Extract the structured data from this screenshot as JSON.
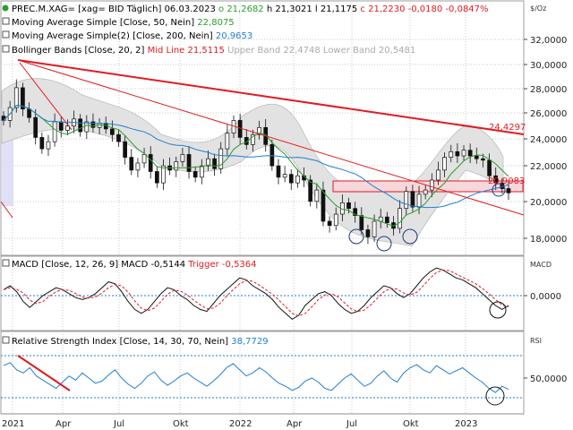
{
  "chart_data": [
    {
      "type": "candlestick",
      "symbol_line": {
        "symbol": "PREC.M.XAG=",
        "source": "[xag= BID Täglich]",
        "date": "06.03.2023",
        "o": "o 21,2682",
        "h": "h 21,3021",
        "l": "l 21,1175",
        "c": "c 21,2230",
        "chg": "-0,0180",
        "chg_pct": "-0,0847%"
      },
      "unit": "$/Oz",
      "ylim": [
        16.5,
        33
      ],
      "yticks": [
        {
          "value": 32,
          "label": "32,0000"
        },
        {
          "value": 30,
          "label": "30,0000"
        },
        {
          "value": 28,
          "label": "28,0000"
        },
        {
          "value": 26,
          "label": "26,0000"
        },
        {
          "value": 24,
          "label": "24,0000"
        },
        {
          "value": 22,
          "label": "22,0000"
        },
        {
          "value": 20,
          "label": "20,0000"
        },
        {
          "value": 18,
          "label": "18,0000"
        }
      ],
      "indicators": [
        {
          "name": "Moving Average Simple",
          "params": "[Close, 50, Nein]",
          "value": "22,8075",
          "color": "#2a9d2a"
        },
        {
          "name": "Moving Average Simple(2)",
          "params": "[Close, 200, Nein]",
          "value": "20,9653",
          "color": "#1f7fd1"
        },
        {
          "name": "Bollinger Bands",
          "params": "[Close, 20, 2]",
          "mid": "Mid Line 21,5115",
          "upper": "Upper Band 22,4748",
          "lower": "Lower Band 20,5481",
          "color": "#b0b0b0"
        }
      ],
      "annotations": [
        {
          "label": "24,4297",
          "value": 24.43,
          "color": "#e11b22"
        },
        {
          "label": "20,9083",
          "value": 20.91,
          "color": "#e11b22"
        }
      ],
      "close_series": [
        26.3,
        27.2,
        28.6,
        27.1,
        26.5,
        25.1,
        24.3,
        24.8,
        26.2,
        25.6,
        25.9,
        26.4,
        25.5,
        26.2,
        25.8,
        26.1,
        25.7,
        25.3,
        24.8,
        23.7,
        22.8,
        23.3,
        23.9,
        22.7,
        21.9,
        23.1,
        22.8,
        23.4,
        23.9,
        22.7,
        22.3,
        23.1,
        23.6,
        22.9,
        24.3,
        25.4,
        26.3,
        25.1,
        24.6,
        25.3,
        25.8,
        24.6,
        23.1,
        22.3,
        22.5,
        21.9,
        22.4,
        22.1,
        20.6,
        21.4,
        19.2,
        18.9,
        19.7,
        20.5,
        20.1,
        19.6,
        18.6,
        18.1,
        19.2,
        19.5,
        19.1,
        18.7,
        20.1,
        21.3,
        20.2,
        21.1,
        21.4,
        22.1,
        22.8,
        23.7,
        24.1,
        23.8,
        24.2,
        23.8,
        23.6,
        23.5,
        22.4,
        21.9,
        21.5,
        21.2
      ],
      "xticks": [
        "2021",
        "Apr",
        "Jul",
        "Okt",
        "2022",
        "Apr",
        "Jul",
        "Okt",
        "2023"
      ]
    },
    {
      "type": "line",
      "name": "MACD",
      "params": "[Close, 12, 26, 9]",
      "value_label": "MACD -0,5144",
      "trigger_label": "Trigger -0,5364",
      "axis_label": "MACD",
      "ytick": "0,0000",
      "macd_series": [
        0.3,
        0.5,
        0.2,
        -0.3,
        -0.6,
        -0.3,
        0.0,
        0.2,
        0.4,
        0.3,
        0.1,
        -0.1,
        -0.2,
        -0.1,
        0.1,
        0.4,
        0.7,
        0.6,
        0.2,
        -0.3,
        -0.7,
        -0.9,
        -0.7,
        -0.3,
        0.1,
        0.4,
        0.3,
        0.0,
        -0.2,
        -0.5,
        -0.7,
        -0.8,
        -0.4,
        0.0,
        0.3,
        0.6,
        0.9,
        0.8,
        0.5,
        0.3,
        0.1,
        -0.2,
        -0.6,
        -0.9,
        -1.2,
        -1.0,
        -0.5,
        -0.2,
        0.1,
        0.2,
        0.0,
        -0.4,
        -0.7,
        -0.9,
        -0.8,
        -0.5,
        -0.1,
        0.2,
        0.5,
        0.4,
        0.1,
        -0.1,
        0.1,
        0.5,
        0.9,
        1.2,
        1.4,
        1.3,
        1.1,
        0.9,
        0.8,
        0.6,
        0.4,
        0.1,
        -0.2,
        -0.5,
        -0.7,
        -0.5
      ]
    },
    {
      "type": "line",
      "name": "Relative Strength Index",
      "params": "[Close, 14, 30, 70, Nein]",
      "value_label": "38,7729",
      "axis_label": "RSI",
      "ytick": "50,0000",
      "rsi_series": [
        62,
        65,
        58,
        55,
        60,
        52,
        48,
        44,
        40,
        46,
        52,
        48,
        55,
        50,
        45,
        47,
        53,
        58,
        50,
        44,
        40,
        45,
        52,
        56,
        48,
        43,
        47,
        52,
        55,
        50,
        46,
        42,
        47,
        53,
        60,
        64,
        58,
        52,
        55,
        60,
        56,
        50,
        45,
        42,
        38,
        41,
        47,
        50,
        46,
        40,
        38,
        44,
        50,
        54,
        48,
        42,
        45,
        52,
        57,
        50,
        46,
        55,
        60,
        63,
        58,
        55,
        62,
        58,
        54,
        57,
        60,
        55,
        50,
        46,
        40,
        36,
        42,
        39
      ]
    }
  ]
}
